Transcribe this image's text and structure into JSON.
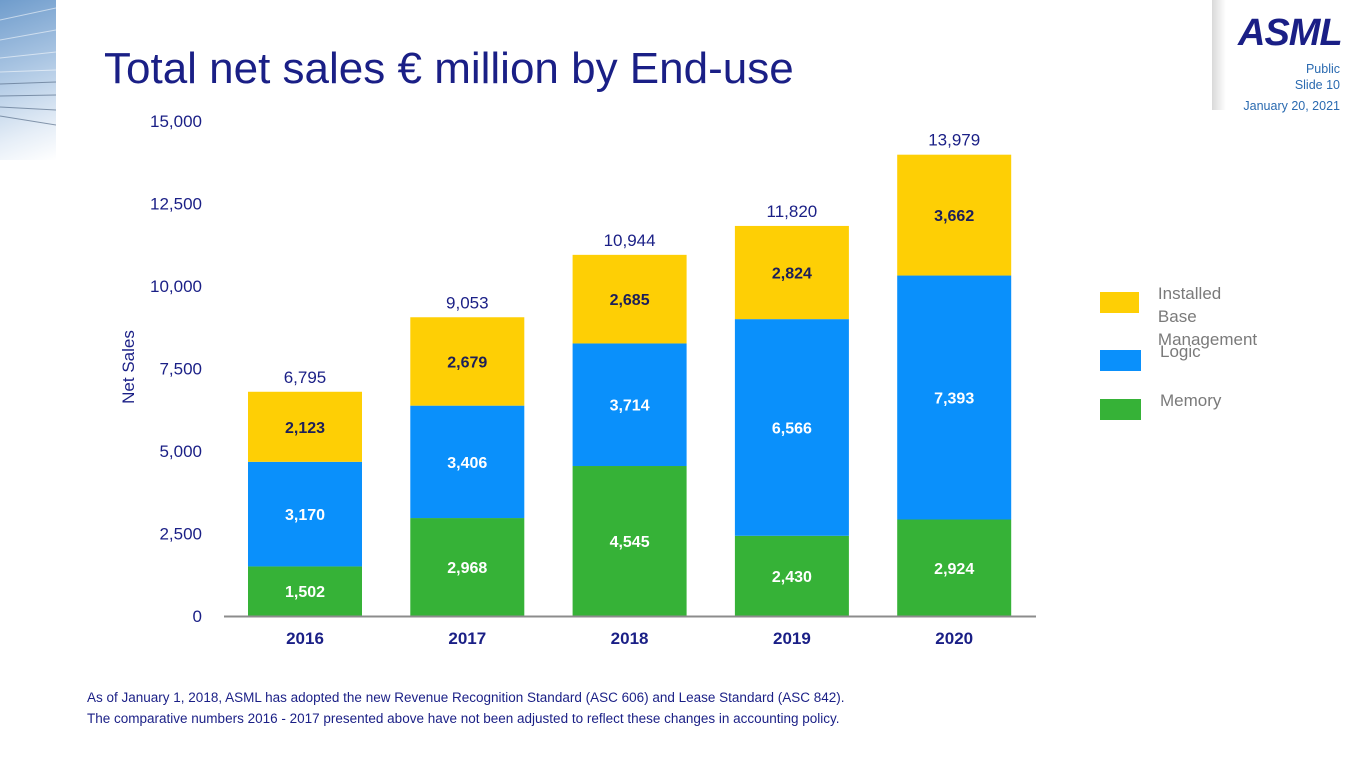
{
  "slide": {
    "title": "Total net sales € million by End-use",
    "logo_text": "ASML",
    "classification": "Public",
    "slide_number": "Slide 10",
    "date": "January 20, 2021",
    "footnote": [
      "As of January 1, 2018, ASML has adopted the new Revenue Recognition Standard (ASC 606) and Lease Standard (ASC 842).",
      "The comparative numbers 2016 - 2017 presented above have not been adjusted to reflect these changes in accounting policy."
    ]
  },
  "chart_data": {
    "type": "bar",
    "stacked": true,
    "title": "Total net sales € million by End-use",
    "xlabel": "",
    "ylabel": "Net Sales",
    "ylim": [
      0,
      15000
    ],
    "yticks": [
      0,
      2500,
      5000,
      7500,
      10000,
      12500,
      15000
    ],
    "ytick_labels": [
      "0",
      "2,500",
      "5,000",
      "7,500",
      "10,000",
      "12,500",
      "15,000"
    ],
    "grid": false,
    "legend_position": "right",
    "categories": [
      "2016",
      "2017",
      "2018",
      "2019",
      "2020"
    ],
    "series": [
      {
        "name": "Memory",
        "color": "#36b237",
        "label_color": "#ffffff",
        "values": [
          1502,
          2968,
          4545,
          2430,
          2924
        ],
        "labels": [
          "1,502",
          "2,968",
          "4,545",
          "2,430",
          "2,924"
        ]
      },
      {
        "name": "Logic",
        "color": "#0a90fb",
        "label_color": "#ffffff",
        "values": [
          3170,
          3406,
          3714,
          6566,
          7393
        ],
        "labels": [
          "3,170",
          "3,406",
          "3,714",
          "6,566",
          "7,393"
        ]
      },
      {
        "name": "Installed Base Management",
        "color": "#fecf05",
        "label_color": "#1c1f5a",
        "values": [
          2123,
          2679,
          2685,
          2824,
          3662
        ],
        "labels": [
          "2,123",
          "2,679",
          "2,685",
          "2,824",
          "3,662"
        ]
      }
    ],
    "totals": [
      6795,
      9053,
      10944,
      11820,
      13979
    ],
    "total_labels": [
      "6,795",
      "9,053",
      "10,944",
      "11,820",
      "13,979"
    ],
    "legend": [
      {
        "name": "Installed Base\nManagement",
        "color": "#fecf05"
      },
      {
        "name": "Logic",
        "color": "#0a90fb"
      },
      {
        "name": "Memory",
        "color": "#36b237"
      }
    ],
    "text_color": "#1a1f86",
    "axis_color": "#8c8c8c"
  }
}
